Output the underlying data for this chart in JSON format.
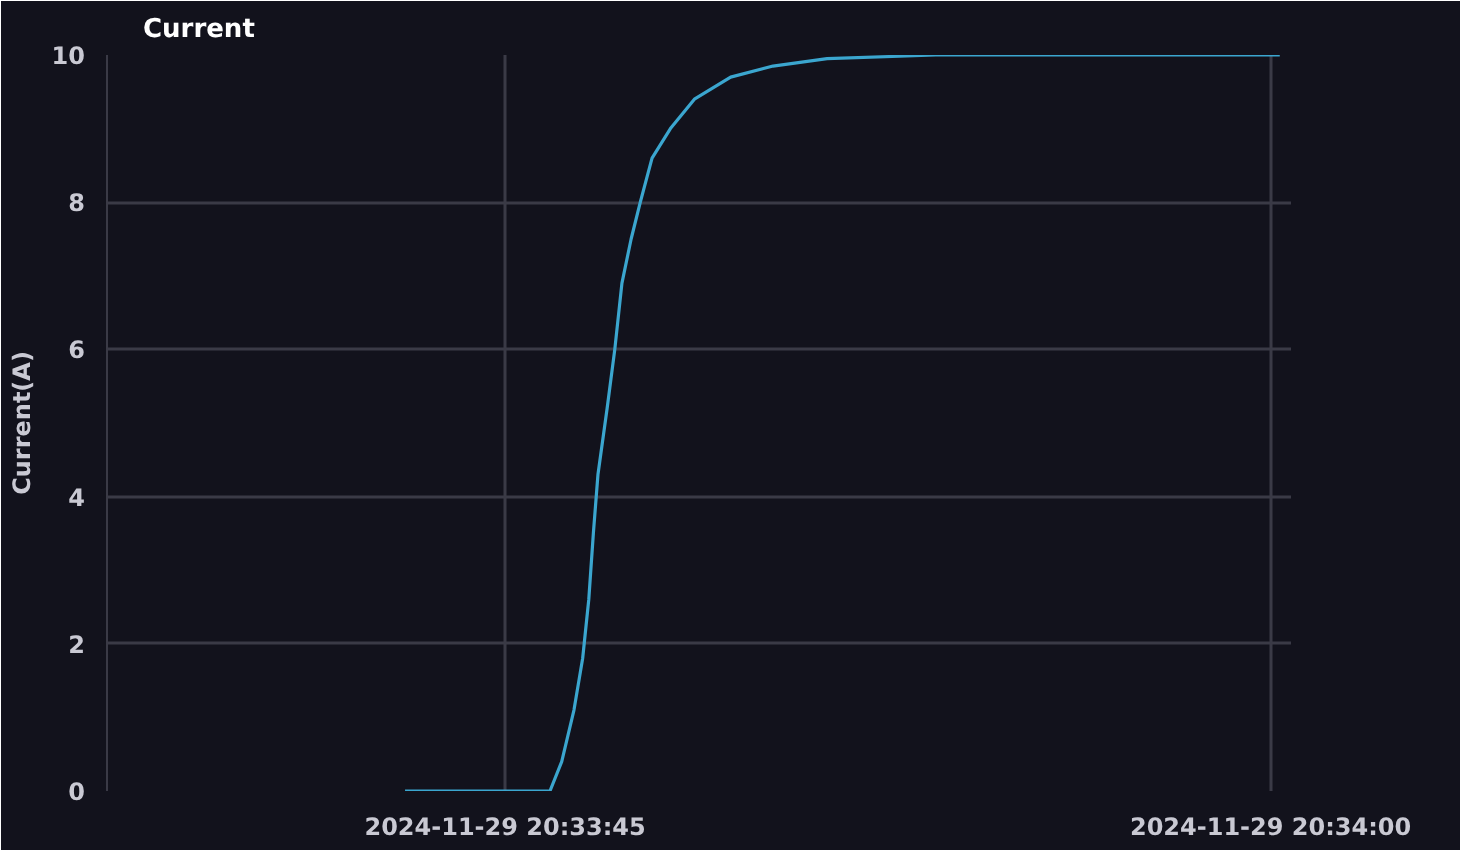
{
  "chart_data": {
    "type": "line",
    "title": "Current",
    "ylabel": "Current(A)",
    "x": [
      "2024-11-29T20:33:43.04",
      "2024-11-29T20:33:45.88",
      "2024-11-29T20:33:46.11",
      "2024-11-29T20:33:46.35",
      "2024-11-29T20:33:46.52",
      "2024-11-29T20:33:46.64",
      "2024-11-29T20:33:46.73",
      "2024-11-29T20:33:46.82",
      "2024-11-29T20:33:47.00",
      "2024-11-29T20:33:47.15",
      "2024-11-29T20:33:47.29",
      "2024-11-29T20:33:47.47",
      "2024-11-29T20:33:47.65",
      "2024-11-29T20:33:47.88",
      "2024-11-29T20:33:48.24",
      "2024-11-29T20:33:48.71",
      "2024-11-29T20:33:49.42",
      "2024-11-29T20:33:50.25",
      "2024-11-29T20:33:51.31",
      "2024-11-29T20:33:53.44",
      "2024-11-29T20:33:55.92",
      "2024-11-29T20:33:58.05",
      "2024-11-29T20:34:00.18"
    ],
    "series": [
      {
        "color": "#3ba6cf",
        "values": [
          0,
          0,
          0.4,
          1.1,
          1.8,
          2.6,
          3.5,
          4.3,
          5.2,
          6.0,
          6.9,
          7.5,
          8.0,
          8.6,
          9.0,
          9.4,
          9.7,
          9.85,
          9.95,
          10.0,
          10.0,
          10.0,
          10.0
        ]
      }
    ],
    "xlim": [
      "2024-11-29T20:33:37.2",
      "2024-11-29T20:34:00.4"
    ],
    "xticks": [
      {
        "value": "2024-11-29T20:33:45",
        "label": "2024-11-29 20:33:45"
      },
      {
        "value": "2024-11-29T20:34:00",
        "label": "2024-11-29 20:34:00"
      }
    ],
    "ylim": [
      0,
      10
    ],
    "yticks": [
      0,
      2,
      4,
      6,
      8,
      10
    ],
    "grid": true,
    "marker": "none",
    "line_style": "solid"
  }
}
